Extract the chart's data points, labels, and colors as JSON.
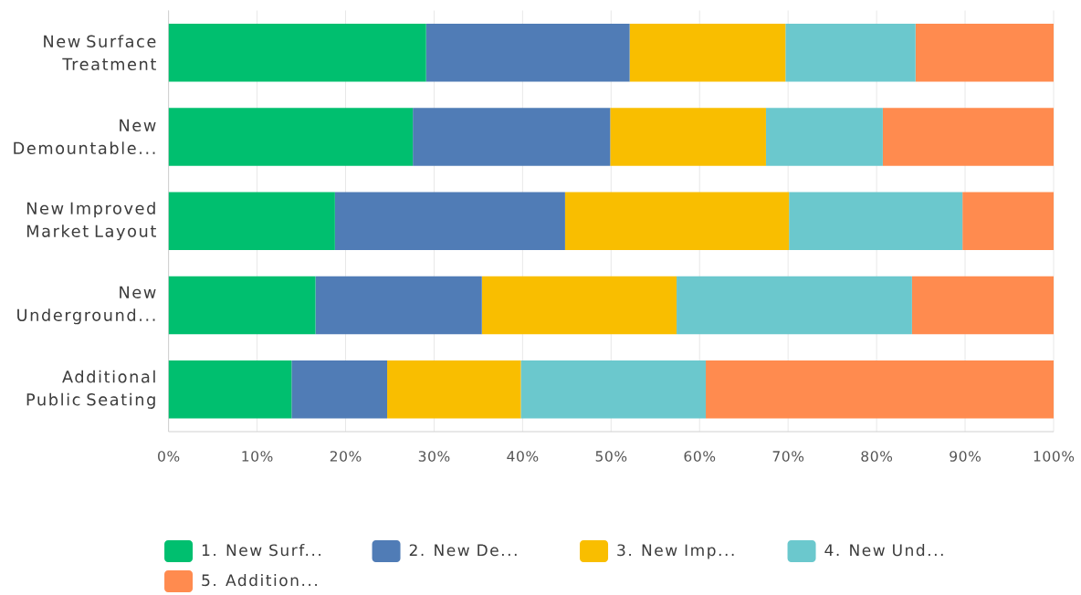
{
  "chart_data": {
    "type": "bar",
    "orientation": "horizontal",
    "stacked": true,
    "categories": [
      "New Surface Treatment",
      "New Demountable...",
      "New Improved Market Layout",
      "New Underground...",
      "Additional Public Seating"
    ],
    "series": [
      {
        "name": "1. New Surf...",
        "color": "#00bf6f",
        "values": [
          29.1,
          27.6,
          18.8,
          16.6,
          13.9
        ]
      },
      {
        "name": "2. New De...",
        "color": "#507cb6",
        "values": [
          23.0,
          22.3,
          26.0,
          18.8,
          10.8
        ]
      },
      {
        "name": "3. New Imp...",
        "color": "#f9be00",
        "values": [
          17.6,
          17.6,
          25.3,
          22.0,
          15.1
        ]
      },
      {
        "name": "4. New Und...",
        "color": "#6bc8cd",
        "values": [
          14.7,
          13.2,
          19.6,
          26.6,
          20.9
        ]
      },
      {
        "name": "5. Addition...",
        "color": "#ff8b4f",
        "values": [
          15.6,
          19.3,
          10.3,
          16.0,
          39.3
        ]
      }
    ],
    "xlim": [
      0,
      100
    ],
    "xticks": [
      {
        "value": 0,
        "label": "0%"
      },
      {
        "value": 10,
        "label": "10%"
      },
      {
        "value": 20,
        "label": "20%"
      },
      {
        "value": 30,
        "label": "30%"
      },
      {
        "value": 40,
        "label": "40%"
      },
      {
        "value": 50,
        "label": "50%"
      },
      {
        "value": 60,
        "label": "60%"
      },
      {
        "value": 70,
        "label": "70%"
      },
      {
        "value": 80,
        "label": "80%"
      },
      {
        "value": 90,
        "label": "90%"
      },
      {
        "value": 100,
        "label": "100%"
      }
    ],
    "grid": "x",
    "legend": "bottom"
  }
}
